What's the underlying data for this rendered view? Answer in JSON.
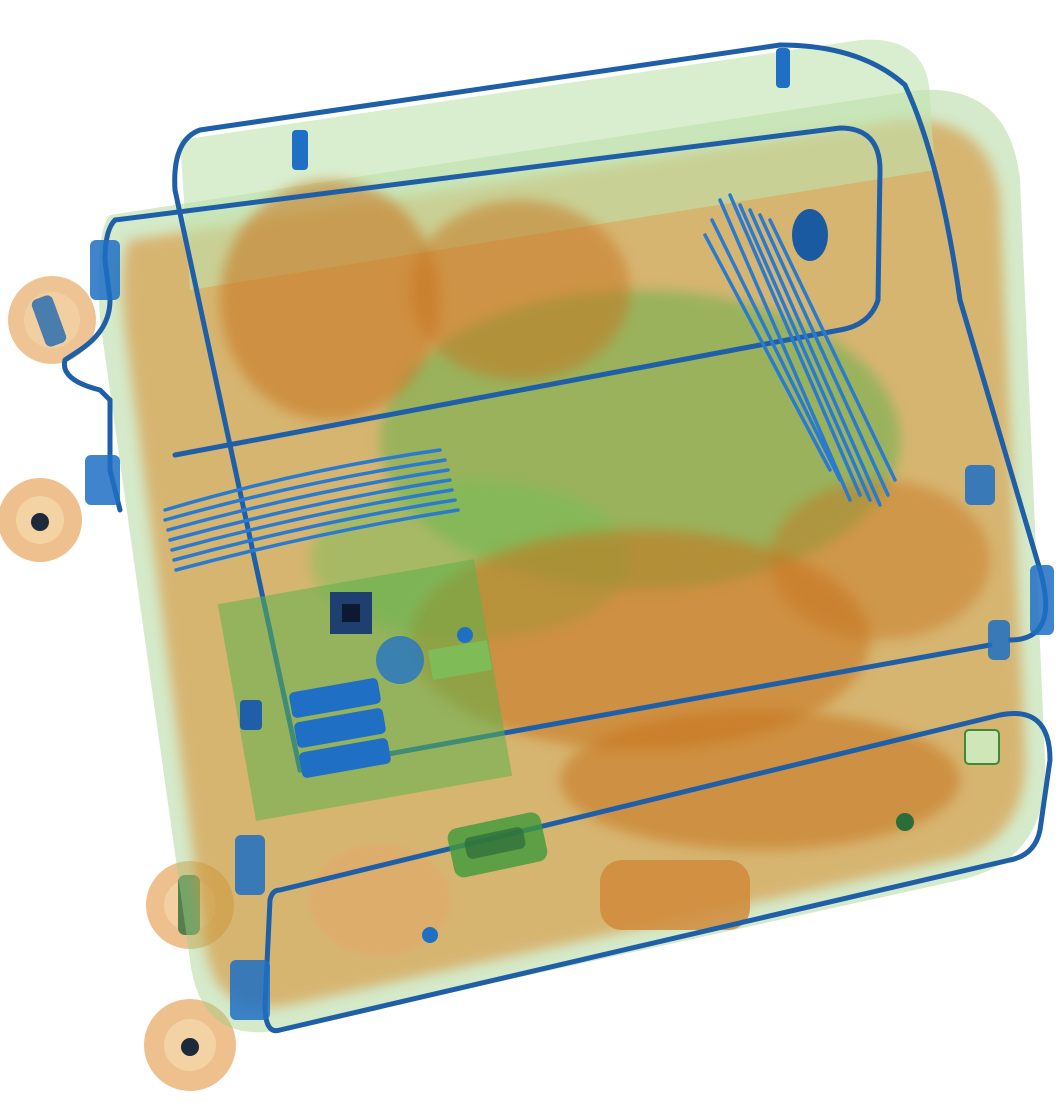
{
  "image": {
    "kind": "x-ray baggage scan",
    "colors": {
      "background": "#ffffff",
      "organic": "#d98a2b",
      "organic_dark": "#b8661a",
      "mixed": "#5fb04a",
      "mixed_dark": "#3f8a34",
      "metal": "#1f6fc4",
      "metal_dark": "#0d4a8f"
    },
    "objects": [
      {
        "name": "suitcase-shell",
        "material": "mixed"
      },
      {
        "name": "telescopic-handle-frame",
        "material": "metal"
      },
      {
        "name": "wheel",
        "material": "organic",
        "count": 4
      },
      {
        "name": "cable-bundle",
        "material": "metal",
        "count": 2
      },
      {
        "name": "circuit-board",
        "material": "metal"
      },
      {
        "name": "clothing",
        "material": "organic"
      }
    ]
  }
}
